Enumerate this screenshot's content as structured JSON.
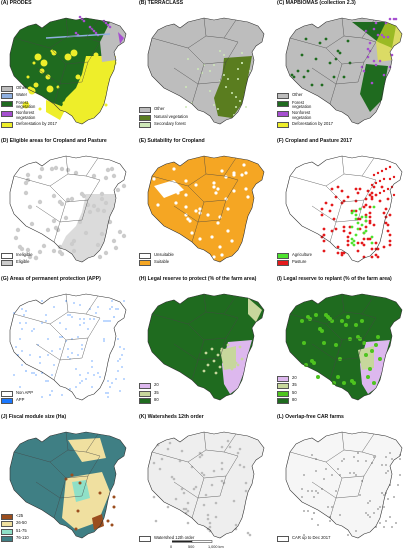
{
  "colors": {
    "other": "#bdbdbd",
    "water": "#8fb0e0",
    "forest": "#1f6b1f",
    "nonforest": "#a64fd0",
    "deforest": "#eeee2a",
    "natural": "#5a7d1f",
    "secondary": "#cfe9b8",
    "ineligible": "#ffffff",
    "eligible": "#cccccc",
    "unsuitable": "#ffffff",
    "suitable": "#f5a623",
    "agriculture": "#4ee32f",
    "pasture": "#e41a1c",
    "nonapp": "#ffffff",
    "app": "#1b78ff",
    "lr20": "#ddb8ee",
    "lr35": "#c7d79c",
    "lr80": "#1f6b1f",
    "lr50": "#4ec41f",
    "fm25": "#9b4e1e",
    "fm50": "#f0e0a0",
    "fm75": "#8fe0c7",
    "fm110": "#3f7f84"
  },
  "panels": [
    {
      "title": "(A) PRODES",
      "legend": [
        {
          "label": "Other",
          "color": "#bdbdbd"
        },
        {
          "label": "Water",
          "color": "#8fb0e0"
        },
        {
          "label": "Forest\nvegetation",
          "color": "#1f6b1f"
        },
        {
          "label": "Nonforest\nvegetation",
          "color": "#a64fd0"
        },
        {
          "label": "Deforestation by 2017",
          "color": "#eeee2a"
        }
      ]
    },
    {
      "title": "(B) TERRACLASS",
      "legend": [
        {
          "label": "Other",
          "color": "#bdbdbd"
        },
        {
          "label": "Natural vegetation",
          "color": "#5a7d1f"
        },
        {
          "label": "Secondary forest",
          "color": "#cfe9b8"
        }
      ]
    },
    {
      "title": "(C) MAPBIOMAS (collection 2.3)",
      "legend": [
        {
          "label": "Other",
          "color": "#bdbdbd"
        },
        {
          "label": "Forest\nvegetation",
          "color": "#1f6b1f"
        },
        {
          "label": "Nonforest\nvegetation",
          "color": "#a64fd0"
        },
        {
          "label": "Deforestation by 2017",
          "color": "#eeee2a"
        }
      ]
    },
    {
      "title": "(D) Eligible areas for Cropland and Pasture",
      "legend": [
        {
          "label": "Ineligible",
          "color": "#ffffff"
        },
        {
          "label": "Eligible",
          "color": "#cccccc"
        }
      ]
    },
    {
      "title": "(E) Suitability for Cropland",
      "legend": [
        {
          "label": "Unsuitable",
          "color": "#ffffff"
        },
        {
          "label": "Suitable",
          "color": "#f5a623"
        }
      ]
    },
    {
      "title": "(F) Cropland and Pasture 2017",
      "legend": [
        {
          "label": "Agriculture",
          "color": "#4ee32f"
        },
        {
          "label": "Pasture",
          "color": "#e41a1c"
        }
      ]
    },
    {
      "title": "(G) Areas of permanent protection (APP)",
      "legend": [
        {
          "label": "Non APP",
          "color": "#ffffff"
        },
        {
          "label": "APP",
          "color": "#1b78ff"
        }
      ]
    },
    {
      "title": "(H) Legal reserve to protect (% of the farm area)",
      "legend": [
        {
          "label": "20",
          "color": "#ddb8ee"
        },
        {
          "label": "35",
          "color": "#c7d79c"
        },
        {
          "label": "80",
          "color": "#1f6b1f"
        }
      ]
    },
    {
      "title": "(I) Legal reserve to replant (% of the farm area)",
      "legend": [
        {
          "label": "20",
          "color": "#ddb8ee"
        },
        {
          "label": "35",
          "color": "#c7d79c"
        },
        {
          "label": "50",
          "color": "#4ec41f"
        },
        {
          "label": "80",
          "color": "#1f6b1f"
        }
      ]
    },
    {
      "title": "(J) Fiscal module size (Ha)",
      "legend": [
        {
          "label": "<25",
          "color": "#9b4e1e"
        },
        {
          "label": "26-50",
          "color": "#f0e0a0"
        },
        {
          "label": "51-75",
          "color": "#8fe0c7"
        },
        {
          "label": "76-110",
          "color": "#3f7f84"
        }
      ]
    },
    {
      "title": "(K) Watersheds 12th order",
      "legend": [
        {
          "label": "Watershed 12th order",
          "color": "#ffffff"
        }
      ]
    },
    {
      "title": "(L) Overlap-free CAR farms",
      "legend": [
        {
          "label": "CAR up to Dec 2017",
          "color": "#ffffff"
        }
      ]
    }
  ],
  "scalebar": {
    "ticks": [
      "0",
      "500",
      "1,000 km"
    ]
  }
}
